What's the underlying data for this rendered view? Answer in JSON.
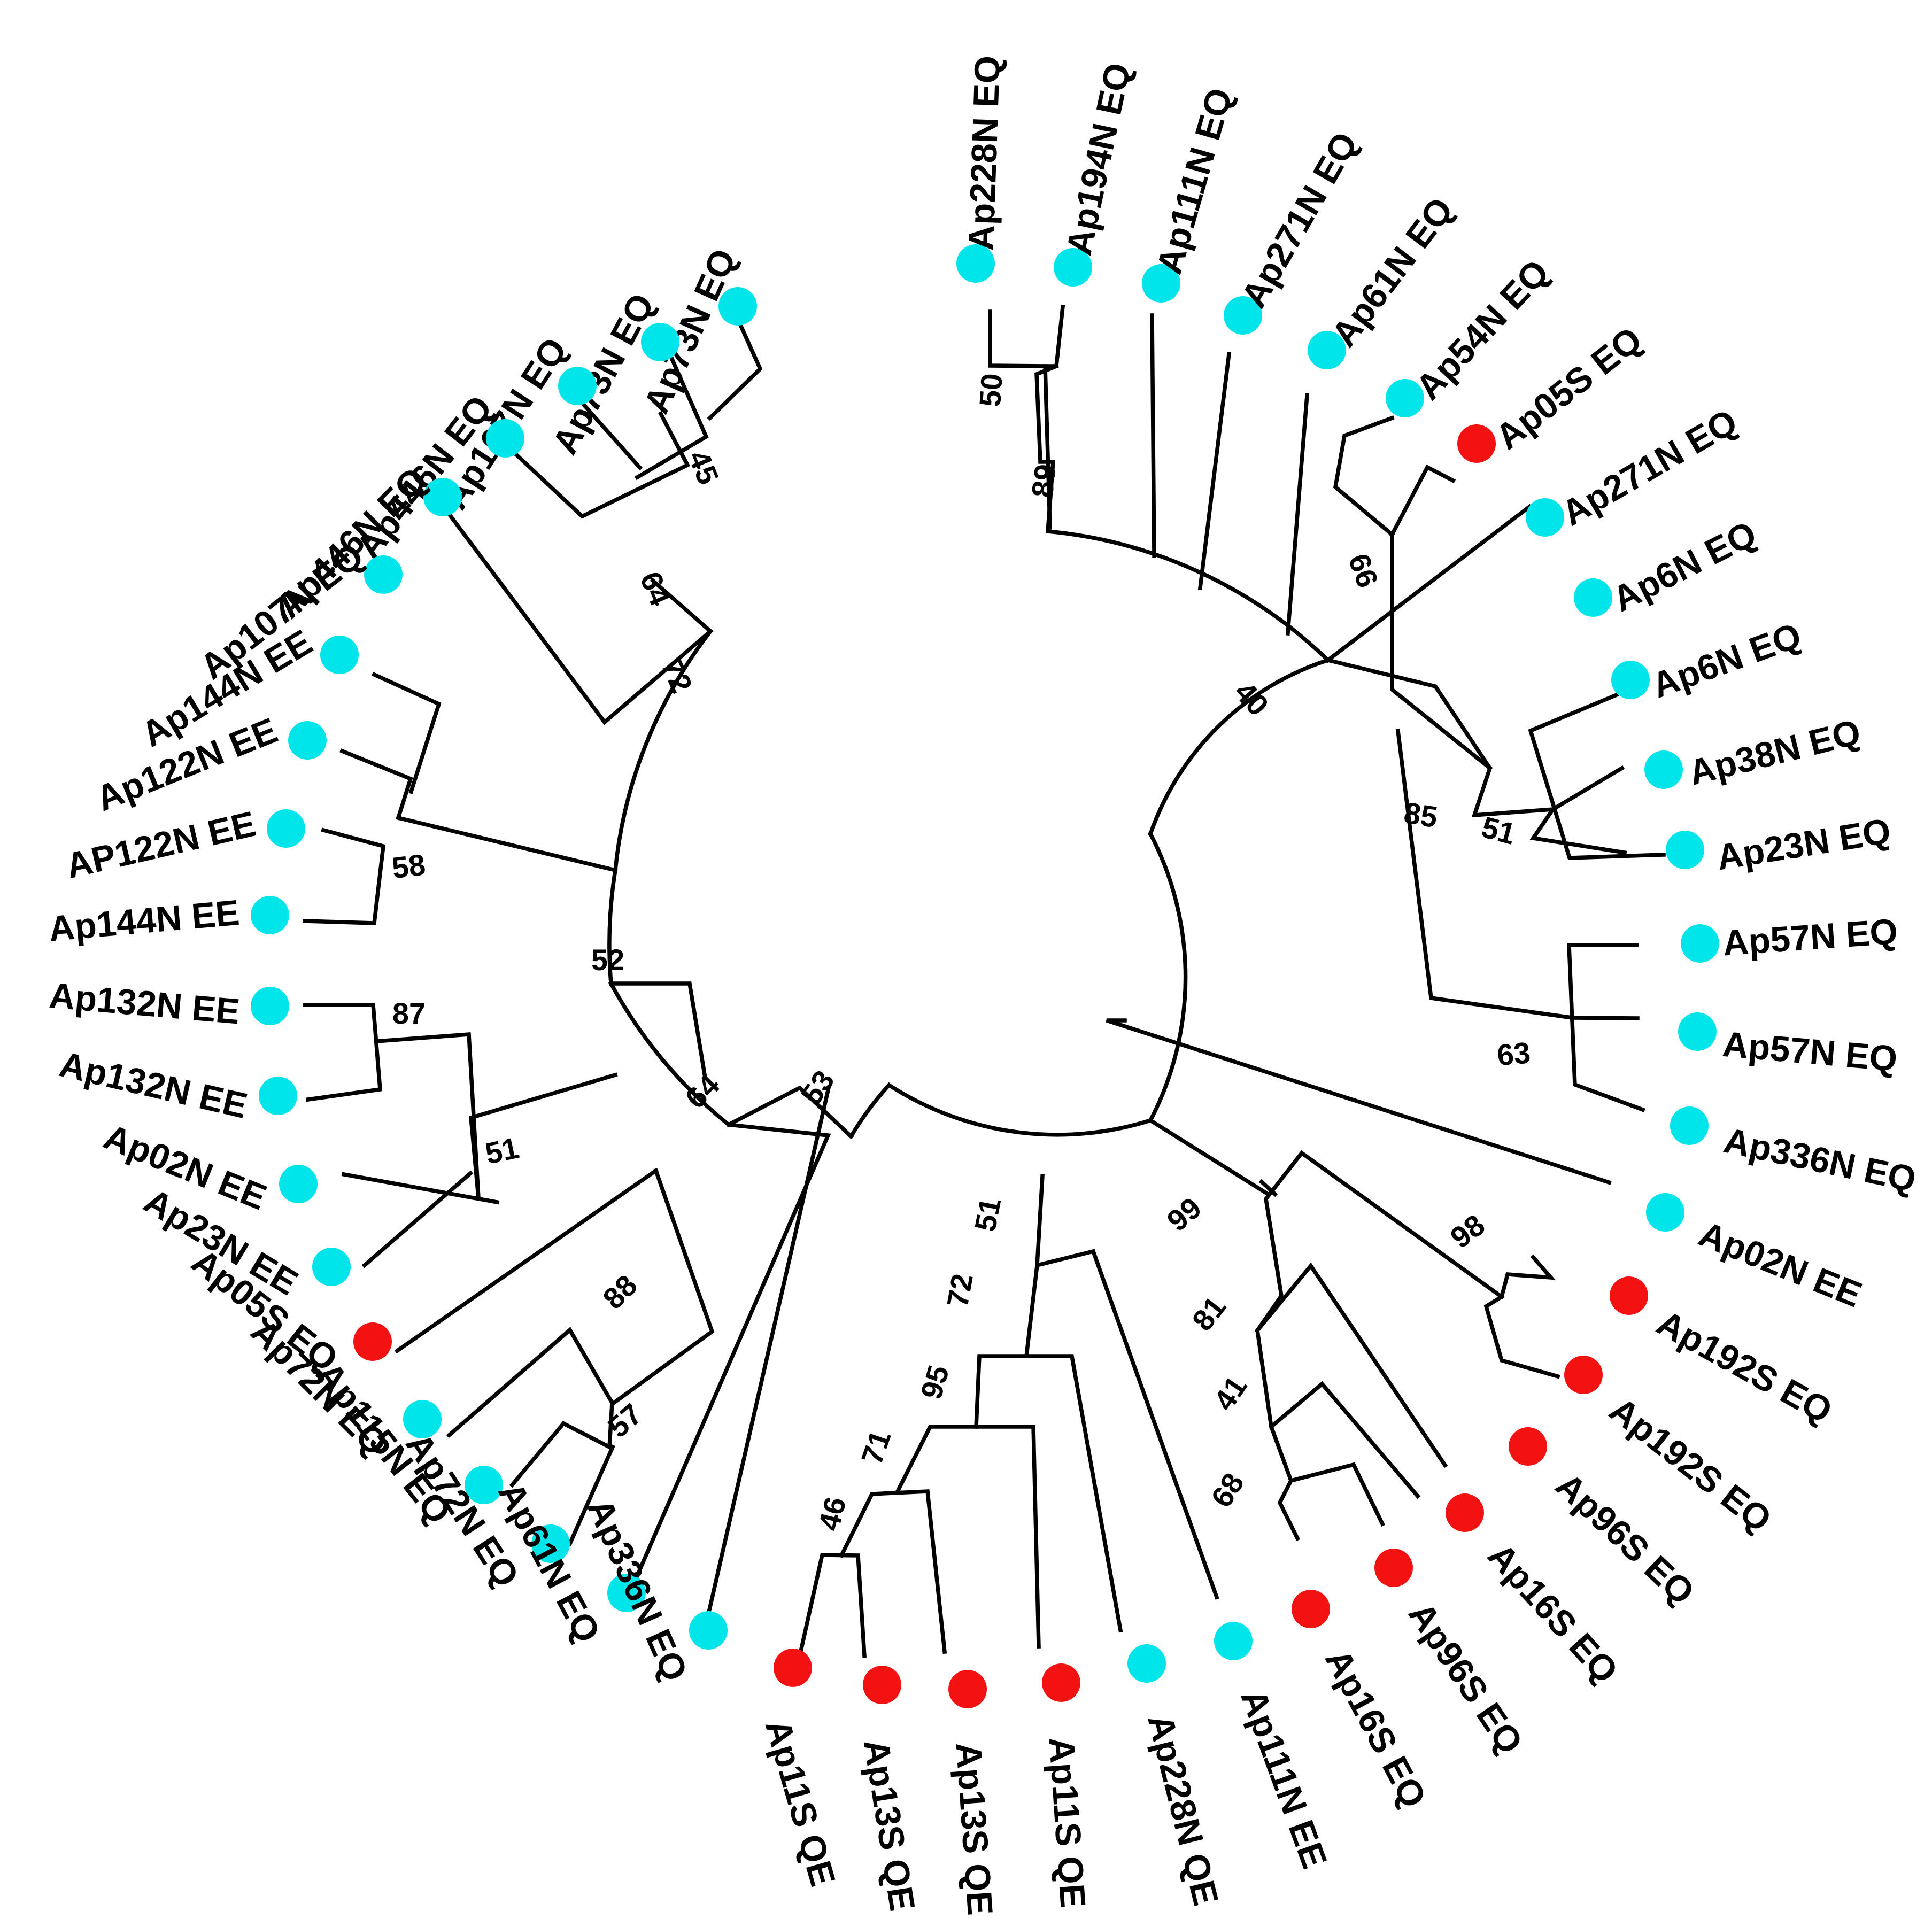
{
  "figure": {
    "type": "circular phylogenetic tree",
    "legend_colors": {
      "N": "#00E5EA",
      "S": "#F21212"
    }
  },
  "leaves": [
    {
      "label": "Ap73N EQ",
      "group": "N"
    },
    {
      "label": "Ap73N EQ",
      "group": "N"
    },
    {
      "label": "Ap107N EQ",
      "group": "N"
    },
    {
      "label": "Ap446N EQ",
      "group": "N"
    },
    {
      "label": "Ap446N EQ",
      "group": "N"
    },
    {
      "label": "Ap107N EQ",
      "group": "N"
    },
    {
      "label": "Ap144N EE",
      "group": "N"
    },
    {
      "label": "Ap122N EE",
      "group": "N"
    },
    {
      "label": "AP122N EE",
      "group": "N"
    },
    {
      "label": "Ap144N EE",
      "group": "N"
    },
    {
      "label": "Ap132N EE",
      "group": "N"
    },
    {
      "label": "Ap132N EE",
      "group": "N"
    },
    {
      "label": "Ap02N EE",
      "group": "N"
    },
    {
      "label": "Ap23N EE",
      "group": "N"
    },
    {
      "label": "Ap05S EQ",
      "group": "S"
    },
    {
      "label": "Ap72N EQ",
      "group": "N"
    },
    {
      "label": "Ap115N EQ",
      "group": "N"
    },
    {
      "label": "Ap72N EQ",
      "group": "N"
    },
    {
      "label": "Ap61N EQ",
      "group": "N"
    },
    {
      "label": "Ap336N EQ",
      "group": "N"
    },
    {
      "label": "Ap11S QE",
      "group": "S"
    },
    {
      "label": "Ap13S QE",
      "group": "S"
    },
    {
      "label": "Ap13S QE",
      "group": "S"
    },
    {
      "label": "Ap11S QE",
      "group": "S"
    },
    {
      "label": "Ap228N QE",
      "group": "N"
    },
    {
      "label": "Ap111N EE",
      "group": "N"
    },
    {
      "label": "Ap16S EQ",
      "group": "S"
    },
    {
      "label": "Ap96S EQ",
      "group": "S"
    },
    {
      "label": "Ap16S EQ",
      "group": "S"
    },
    {
      "label": "Ap96S EQ",
      "group": "S"
    },
    {
      "label": "Ap192S EQ",
      "group": "S"
    },
    {
      "label": "Ap192S EQ",
      "group": "S"
    },
    {
      "label": "Ap02N EE",
      "group": "N"
    },
    {
      "label": "Ap336N EQ",
      "group": "N"
    },
    {
      "label": "Ap57N EQ",
      "group": "N"
    },
    {
      "label": "Ap57N EQ",
      "group": "N"
    },
    {
      "label": "Ap23N EQ",
      "group": "N"
    },
    {
      "label": "Ap38N EQ",
      "group": "N"
    },
    {
      "label": "Ap6N EQ",
      "group": "N"
    },
    {
      "label": "Ap6N EQ",
      "group": "N"
    },
    {
      "label": "Ap271N EQ",
      "group": "N"
    },
    {
      "label": "Ap05S EQ",
      "group": "S"
    },
    {
      "label": "Ap54N EQ",
      "group": "N"
    },
    {
      "label": "Ap61N EQ",
      "group": "N"
    },
    {
      "label": "Ap271N EQ",
      "group": "N"
    },
    {
      "label": "Ap111N EQ",
      "group": "N"
    },
    {
      "label": "Ap194N EQ",
      "group": "N"
    },
    {
      "label": "Ap228N EQ",
      "group": "N"
    }
  ],
  "bootstrap_values": [
    "45",
    "64",
    "72",
    "58",
    "52",
    "87",
    "51",
    "88",
    "57",
    "64",
    "53",
    "46",
    "71",
    "95",
    "72",
    "51",
    "68",
    "41",
    "81",
    "99",
    "98",
    "63",
    "51",
    "85",
    "66",
    "40",
    "89",
    "50"
  ]
}
